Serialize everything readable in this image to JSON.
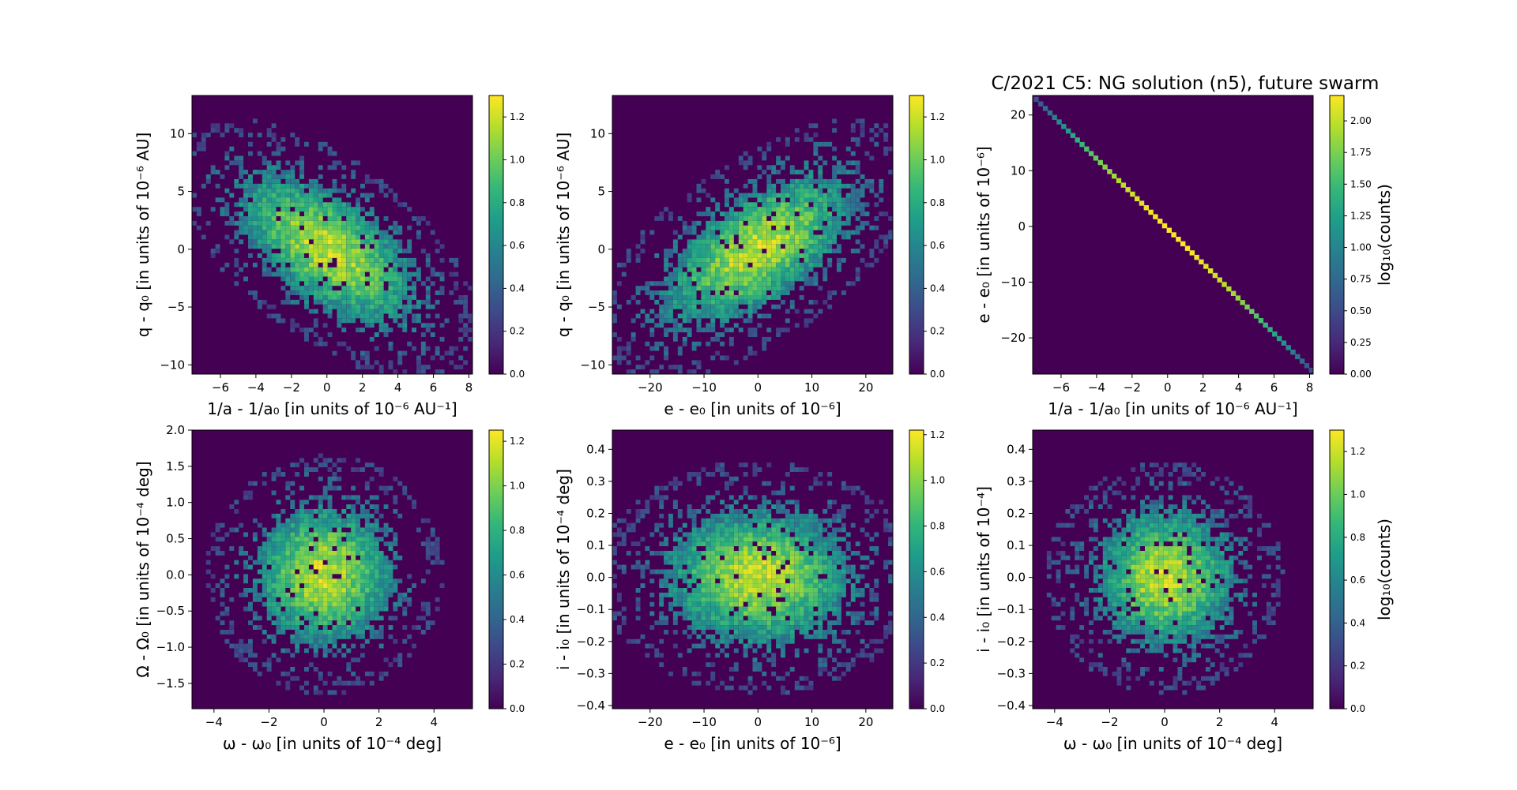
{
  "figure": {
    "title": "C/2021 C5: NG solution (n5), future swarm"
  },
  "colormap": {
    "name": "viridis",
    "stops": [
      "#440154",
      "#482878",
      "#3e4989",
      "#31688e",
      "#26828e",
      "#1f9e89",
      "#35b779",
      "#6ece58",
      "#b5de2b",
      "#fde725"
    ]
  },
  "chart_data": [
    {
      "type": "heatmap",
      "xlabel": "1/a - 1/a₀ [in units of 10⁻⁶ AU⁻¹]",
      "ylabel": "q - q₀ [in units of 10⁻⁶ AU]",
      "xlim": [
        -7.6,
        8.2
      ],
      "ylim": [
        -10.8,
        13.3
      ],
      "xticks": [
        -6,
        -4,
        -2,
        0,
        2,
        4,
        6,
        8
      ],
      "yticks": [
        -10,
        -5,
        0,
        5,
        10
      ],
      "colorbar": {
        "label": "",
        "range": [
          0,
          1.3
        ],
        "ticks": [
          0.0,
          0.2,
          0.4,
          0.6,
          0.8,
          1.0,
          1.2
        ],
        "ticklabels": [
          "0.0",
          "0.2",
          "0.4",
          "0.6",
          "0.8",
          "1.0",
          "1.2"
        ]
      },
      "distribution": {
        "center": [
          0,
          0
        ],
        "sigma": [
          2.6,
          3.4
        ],
        "correlation": -0.6
      }
    },
    {
      "type": "heatmap",
      "xlabel": "e - e₀ [in units of 10⁻⁶]",
      "ylabel": "q - q₀ [in units of 10⁻⁶ AU]",
      "xlim": [
        -27,
        25
      ],
      "ylim": [
        -10.8,
        13.3
      ],
      "xticks": [
        -20,
        -10,
        0,
        10,
        20
      ],
      "yticks": [
        -10,
        -5,
        0,
        5,
        10
      ],
      "colorbar": {
        "label": "",
        "range": [
          0,
          1.3
        ],
        "ticks": [
          0.0,
          0.2,
          0.4,
          0.6,
          0.8,
          1.0,
          1.2
        ],
        "ticklabels": [
          "0.0",
          "0.2",
          "0.4",
          "0.6",
          "0.8",
          "1.0",
          "1.2"
        ]
      },
      "distribution": {
        "center": [
          0,
          0
        ],
        "sigma": [
          9,
          3.4
        ],
        "correlation": 0.6
      }
    },
    {
      "type": "heatmap",
      "xlabel": "1/a - 1/a₀ [in units of 10⁻⁶ AU⁻¹]",
      "ylabel": "e - e₀ [in units of 10⁻⁶]",
      "xlim": [
        -7.6,
        8.2
      ],
      "ylim": [
        -26.5,
        23.5
      ],
      "xticks": [
        -6,
        -4,
        -2,
        0,
        2,
        4,
        6,
        8
      ],
      "yticks": [
        -20,
        -10,
        0,
        10,
        20
      ],
      "colorbar": {
        "label": "log₁₀(counts)",
        "range": [
          0,
          2.2
        ],
        "ticks": [
          0.0,
          0.25,
          0.5,
          0.75,
          1.0,
          1.25,
          1.5,
          1.75,
          2.0
        ],
        "ticklabels": [
          "0.00",
          "0.25",
          "0.50",
          "0.75",
          "1.00",
          "1.25",
          "1.50",
          "1.75",
          "2.00"
        ]
      },
      "line": {
        "points": [
          [
            -7.4,
            22.8
          ],
          [
            8.1,
            -25.8
          ]
        ]
      }
    },
    {
      "type": "heatmap",
      "xlabel": "ω - ω₀ [in units of 10⁻⁴ deg]",
      "ylabel": "Ω - Ω₀ [in units of 10⁻⁴ deg]",
      "xlim": [
        -4.8,
        5.4
      ],
      "ylim": [
        -1.85,
        2.0
      ],
      "xticks": [
        -4,
        -2,
        0,
        2,
        4
      ],
      "yticks": [
        -1.5,
        -1.0,
        -0.5,
        0.0,
        0.5,
        1.0,
        1.5,
        2.0
      ],
      "yticklabels": [
        "−1.5",
        "−1.0",
        "−0.5",
        "0.0",
        "0.5",
        "1.0",
        "1.5",
        "2.0"
      ],
      "colorbar": {
        "label": "",
        "range": [
          0,
          1.25
        ],
        "ticks": [
          0.0,
          0.2,
          0.4,
          0.6,
          0.8,
          1.0,
          1.2
        ],
        "ticklabels": [
          "0.0",
          "0.2",
          "0.4",
          "0.6",
          "0.8",
          "1.0",
          "1.2"
        ]
      },
      "distribution": {
        "center": [
          0,
          0
        ],
        "sigma": [
          1.3,
          0.5
        ],
        "correlation": 0.0
      }
    },
    {
      "type": "heatmap",
      "xlabel": "e - e₀ [in units of 10⁻⁶]",
      "ylabel": "i - i₀ [in units of 10⁻⁴ deg]",
      "xlim": [
        -27,
        25
      ],
      "ylim": [
        -0.41,
        0.46
      ],
      "xticks": [
        -20,
        -10,
        0,
        10,
        20
      ],
      "yticks": [
        -0.4,
        -0.3,
        -0.2,
        -0.1,
        0.0,
        0.1,
        0.2,
        0.3,
        0.4
      ],
      "yticklabels": [
        "−0.4",
        "−0.3",
        "−0.2",
        "−0.1",
        "0.0",
        "0.1",
        "0.2",
        "0.3",
        "0.4"
      ],
      "colorbar": {
        "label": "",
        "range": [
          0,
          1.22
        ],
        "ticks": [
          0.0,
          0.2,
          0.4,
          0.6,
          0.8,
          1.0,
          1.2
        ],
        "ticklabels": [
          "0.0",
          "0.2",
          "0.4",
          "0.6",
          "0.8",
          "1.0",
          "1.2"
        ]
      },
      "distribution": {
        "center": [
          0,
          0
        ],
        "sigma": [
          9,
          0.11
        ],
        "correlation": 0.0
      }
    },
    {
      "type": "heatmap",
      "xlabel": "ω - ω₀ [in units of 10⁻⁴ deg]",
      "ylabel": "i - i₀ [in units of 10⁻⁴]",
      "xlim": [
        -4.8,
        5.4
      ],
      "ylim": [
        -0.41,
        0.46
      ],
      "xticks": [
        -4,
        -2,
        0,
        2,
        4
      ],
      "yticks": [
        -0.4,
        -0.3,
        -0.2,
        -0.1,
        0.0,
        0.1,
        0.2,
        0.3,
        0.4
      ],
      "yticklabels": [
        "−0.4",
        "−0.3",
        "−0.2",
        "−0.1",
        "0.0",
        "0.1",
        "0.2",
        "0.3",
        "0.4"
      ],
      "colorbar": {
        "label": "log₁₀(counts)",
        "range": [
          0,
          1.3
        ],
        "ticks": [
          0.0,
          0.2,
          0.4,
          0.6,
          0.8,
          1.0,
          1.2
        ],
        "ticklabels": [
          "0.0",
          "0.2",
          "0.4",
          "0.6",
          "0.8",
          "1.0",
          "1.2"
        ]
      },
      "distribution": {
        "center": [
          0,
          0
        ],
        "sigma": [
          1.3,
          0.11
        ],
        "correlation": 0.0
      }
    }
  ]
}
